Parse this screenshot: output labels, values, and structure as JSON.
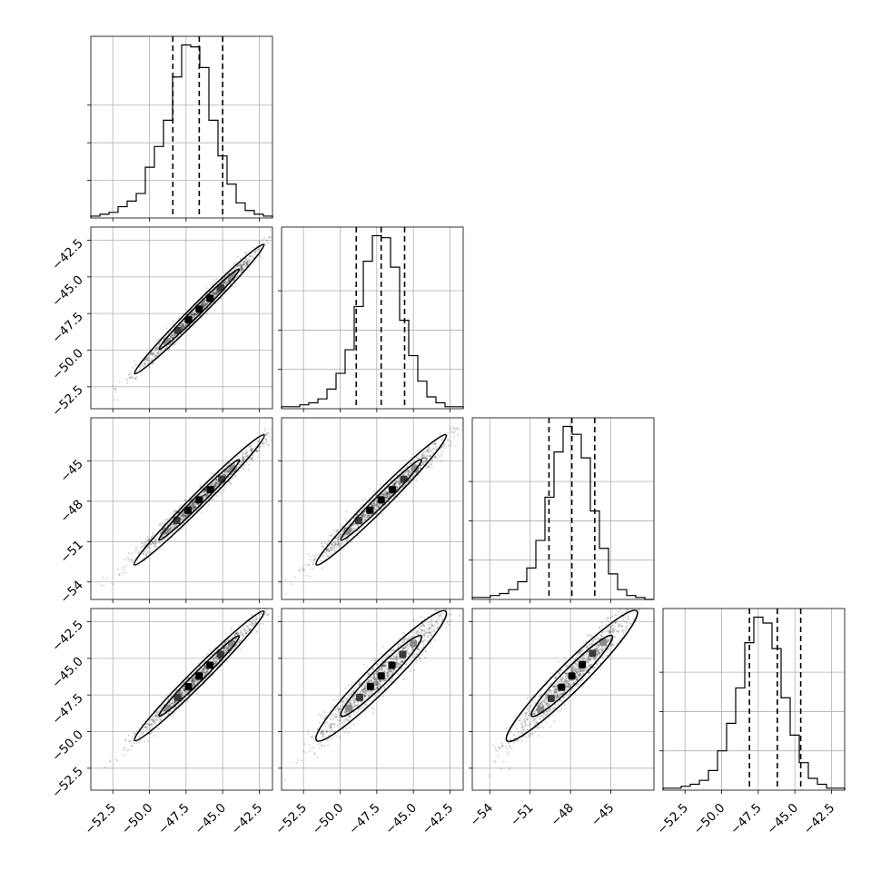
{
  "chart_data": {
    "type": "corner",
    "dimensions": 4,
    "quantiles": [
      0.16,
      0.5,
      0.84
    ],
    "grid": true,
    "parameters": [
      {
        "range": [
          -54.0,
          -41.6
        ],
        "x_ticks": [
          -52.5,
          -50.0,
          -47.5,
          -45.0,
          -42.5
        ],
        "x_tick_labels": [
          "−52.5",
          "−50.0",
          "−47.5",
          "−45.0",
          "−42.5"
        ],
        "y_ticks": [
          -52.5,
          -50.0,
          -47.5,
          -45.0,
          -42.5
        ],
        "y_tick_labels": [
          "−52.5",
          "−50.0",
          "−47.5",
          "−45.0",
          "−42.5"
        ],
        "quantile_values": [
          -48.4,
          -46.6,
          -45.0
        ],
        "hist_counts": [
          1,
          2,
          3,
          6,
          9,
          13,
          27,
          38,
          52,
          75,
          92,
          91,
          80,
          52,
          33,
          18,
          8,
          4,
          2,
          1
        ],
        "hist_ticks": [
          20,
          40,
          60
        ]
      },
      {
        "range": [
          -54.0,
          -41.6
        ],
        "x_ticks": [
          -52.5,
          -50.0,
          -47.5,
          -45.0,
          -42.5
        ],
        "x_tick_labels": [
          "−52.5",
          "−50.0",
          "−47.5",
          "−45.0",
          "−42.5"
        ],
        "y_ticks": [
          -52.5,
          -50.0,
          -47.5,
          -45.0,
          -42.5
        ],
        "y_tick_labels": [
          "−52.5",
          "−50.0",
          "−47.5",
          "−45.0",
          "−42.5"
        ],
        "quantile_values": [
          -48.9,
          -47.2,
          -45.6
        ],
        "hist_counts": [
          1,
          1,
          2,
          3,
          5,
          10,
          18,
          30,
          52,
          75,
          88,
          87,
          72,
          45,
          27,
          14,
          6,
          3,
          1,
          1
        ],
        "hist_ticks": [
          20,
          40,
          60
        ]
      },
      {
        "range": [
          -55.3,
          -41.8
        ],
        "x_ticks": [
          -54,
          -51,
          -48,
          -45
        ],
        "x_tick_labels": [
          "−54",
          "−51",
          "−48",
          "−45"
        ],
        "y_ticks": [
          -54,
          -51,
          -48,
          -45
        ],
        "y_tick_labels": [
          "−54",
          "−51",
          "−48",
          "−45"
        ],
        "quantile_values": [
          -49.6,
          -47.9,
          -46.2
        ],
        "hist_counts": [
          1,
          1,
          2,
          3,
          5,
          9,
          16,
          30,
          52,
          75,
          88,
          84,
          72,
          45,
          26,
          13,
          5,
          2,
          1,
          0
        ],
        "hist_ticks": [
          20,
          40,
          60
        ]
      },
      {
        "range": [
          -54.0,
          -41.6
        ],
        "x_ticks": [
          -52.5,
          -50.0,
          -47.5,
          -45.0,
          -42.5
        ],
        "x_tick_labels": [
          "−52.5",
          "−50.0",
          "−47.5",
          "−45.0",
          "−42.5"
        ],
        "y_ticks": [
          -52.5,
          -50.0,
          -47.5,
          -45.0,
          -42.5
        ],
        "y_tick_labels": [
          "−52.5",
          "−50.0",
          "−47.5",
          "−45.0",
          "−42.5"
        ],
        "quantile_values": [
          -48.1,
          -46.2,
          -44.6
        ],
        "hist_counts": [
          1,
          1,
          2,
          3,
          5,
          10,
          20,
          34,
          52,
          75,
          88,
          85,
          72,
          47,
          28,
          14,
          6,
          3,
          1,
          1
        ],
        "hist_ticks": [
          20,
          40,
          60
        ]
      }
    ],
    "pairs": [
      {
        "row": 1,
        "col": 0,
        "center_x": -46.6,
        "center_y": -47.2,
        "spread_major": 2.1,
        "spread_minor": 0.15
      },
      {
        "row": 2,
        "col": 0,
        "center_x": -46.6,
        "center_y": -47.9,
        "spread_major": 2.2,
        "spread_minor": 0.17
      },
      {
        "row": 2,
        "col": 1,
        "center_x": -47.2,
        "center_y": -47.9,
        "spread_major": 2.2,
        "spread_minor": 0.2
      },
      {
        "row": 3,
        "col": 0,
        "center_x": -46.6,
        "center_y": -46.2,
        "spread_major": 2.1,
        "spread_minor": 0.18
      },
      {
        "row": 3,
        "col": 1,
        "center_x": -47.2,
        "center_y": -46.2,
        "spread_major": 2.1,
        "spread_minor": 0.3
      },
      {
        "row": 3,
        "col": 2,
        "center_x": -47.9,
        "center_y": -46.2,
        "spread_major": 2.2,
        "spread_minor": 0.32
      }
    ],
    "colors": {
      "line": "#000000",
      "grid": "#b0b0b0",
      "samples": "#000000"
    }
  }
}
